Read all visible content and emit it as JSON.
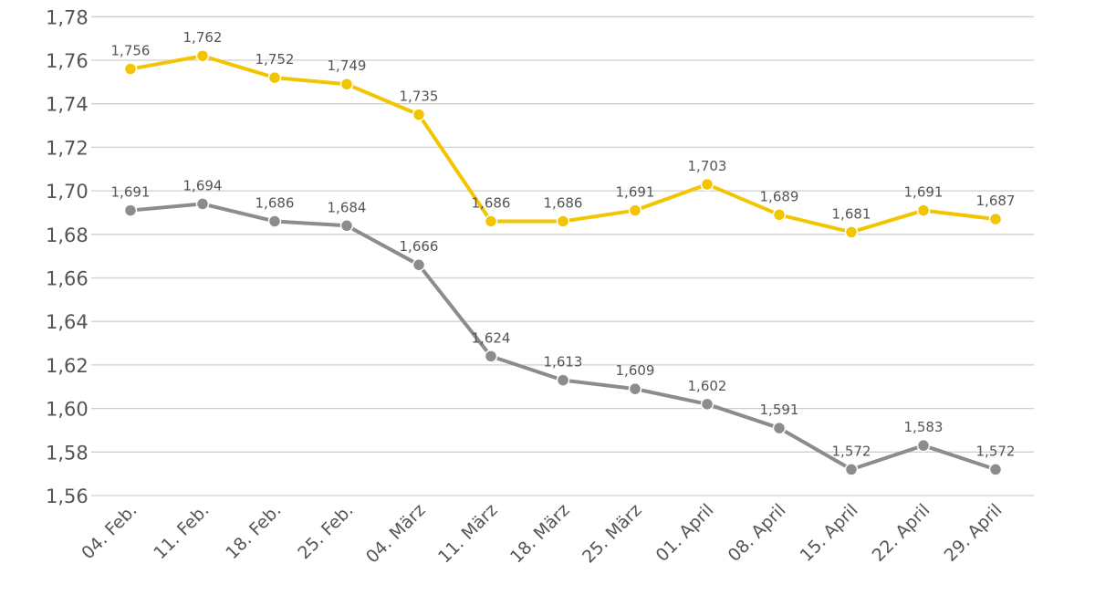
{
  "chart_data": {
    "type": "line",
    "title": "",
    "xlabel": "",
    "ylabel": "",
    "ylim": [
      1.56,
      1.78
    ],
    "y_ticks": [
      1.56,
      1.58,
      1.6,
      1.62,
      1.64,
      1.66,
      1.68,
      1.7,
      1.72,
      1.74,
      1.76,
      1.78
    ],
    "y_tick_labels": [
      "1,56",
      "1,58",
      "1,60",
      "1,62",
      "1,64",
      "1,66",
      "1,68",
      "1,70",
      "1,72",
      "1,74",
      "1,76",
      "1,78"
    ],
    "grid": true,
    "categories": [
      "04. Feb.",
      "11. Feb.",
      "18. Feb.",
      "25. Feb.",
      "04. März",
      "11. März",
      "18. März",
      "25. März",
      "01. April",
      "08. April",
      "15. April",
      "22. April",
      "29. April"
    ],
    "series": [
      {
        "name": "yellow",
        "color": "#f2c500",
        "values": [
          1.756,
          1.762,
          1.752,
          1.749,
          1.735,
          1.686,
          1.686,
          1.691,
          1.703,
          1.689,
          1.681,
          1.691,
          1.687
        ],
        "labels": [
          "1,756",
          "1,762",
          "1,752",
          "1,749",
          "1,735",
          "1,686",
          "1,686",
          "1,691",
          "1,703",
          "1,689",
          "1,681",
          "1,691",
          "1,687"
        ]
      },
      {
        "name": "gray",
        "color": "#8c8c8c",
        "values": [
          1.691,
          1.694,
          1.686,
          1.684,
          1.666,
          1.624,
          1.613,
          1.609,
          1.602,
          1.591,
          1.572,
          1.583,
          1.572
        ],
        "labels": [
          "1,691",
          "1,694",
          "1,686",
          "1,684",
          "1,666",
          "1,624",
          "1,613",
          "1,609",
          "1,602",
          "1,591",
          "1,572",
          "1,583",
          "1,572"
        ]
      }
    ]
  }
}
